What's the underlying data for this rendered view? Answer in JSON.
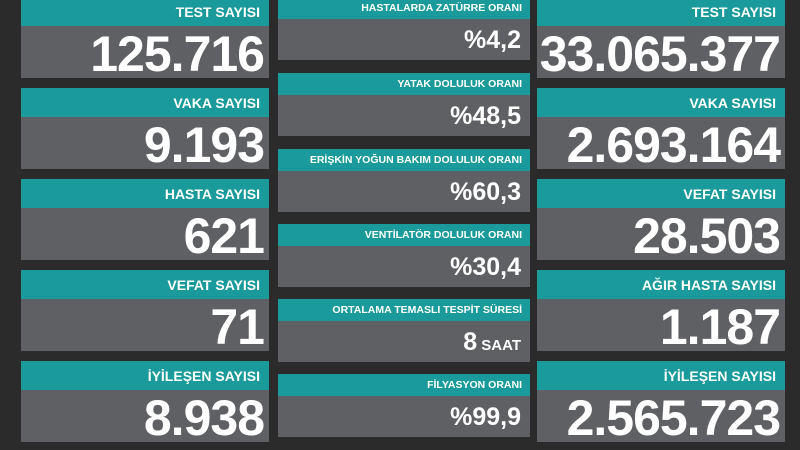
{
  "left": [
    {
      "label": "TEST SAYISI",
      "value": "125.716"
    },
    {
      "label": "VAKA SAYISI",
      "value": "9.193"
    },
    {
      "label": "HASTA SAYISI",
      "value": "621"
    },
    {
      "label": "VEFAT SAYISI",
      "value": "71"
    },
    {
      "label": "İYİLEŞEN SAYISI",
      "value": "8.938"
    }
  ],
  "middle": [
    {
      "label": "HASTALARDA ZATÜRRE ORANI",
      "prefix": "%",
      "value": "4,2",
      "unit": ""
    },
    {
      "label": "YATAK DOLULUK ORANI",
      "prefix": "%",
      "value": "48,5",
      "unit": ""
    },
    {
      "label": "ERİŞKİN YOĞUN BAKIM DOLULUK ORANI",
      "prefix": "%",
      "value": "60,3",
      "unit": ""
    },
    {
      "label": "VENTİLATÖR DOLULUK ORANI",
      "prefix": "%",
      "value": "30,4",
      "unit": ""
    },
    {
      "label": "ORTALAMA TEMASLI TESPİT SÜRESİ",
      "prefix": "",
      "value": "8",
      "unit": " SAAT"
    },
    {
      "label": "FİLYASYON ORANI",
      "prefix": "%",
      "value": "99,9",
      "unit": ""
    }
  ],
  "right": [
    {
      "label": "TEST SAYISI",
      "value": "33.065.377"
    },
    {
      "label": "VAKA SAYISI",
      "value": "2.693.164"
    },
    {
      "label": "VEFAT SAYISI",
      "value": "28.503"
    },
    {
      "label": "AĞIR HASTA SAYISI",
      "value": "1.187"
    },
    {
      "label": "İYİLEŞEN SAYISI",
      "value": "2.565.723"
    }
  ]
}
